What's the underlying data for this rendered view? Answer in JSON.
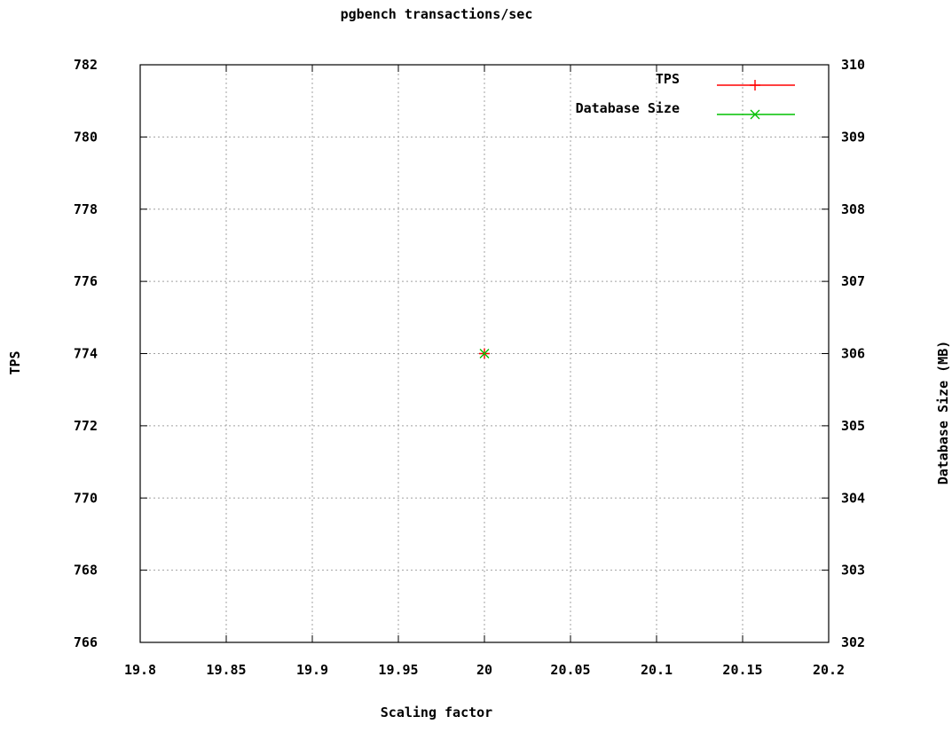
{
  "chart_data": {
    "type": "scatter",
    "title": "pgbench transactions/sec",
    "xlabel": "Scaling factor",
    "ylabel": "TPS",
    "y2label": "Database Size (MB)",
    "xlim": [
      19.8,
      20.2
    ],
    "ylim": [
      766,
      782
    ],
    "y2lim": [
      302,
      310
    ],
    "x_ticks": [
      "19.8",
      "19.85",
      "19.9",
      "19.95",
      "20",
      "20.05",
      "20.1",
      "20.15",
      "20.2"
    ],
    "y_ticks": [
      "766",
      "768",
      "770",
      "772",
      "774",
      "776",
      "778",
      "780",
      "782"
    ],
    "y2_ticks": [
      "302",
      "303",
      "304",
      "305",
      "306",
      "307",
      "308",
      "309",
      "310"
    ],
    "grid": true,
    "legend_position": "top-right",
    "series": [
      {
        "name": "TPS",
        "axis": "y",
        "color": "#ff0000",
        "marker": "plus",
        "x": [
          20
        ],
        "y": [
          774
        ]
      },
      {
        "name": "Database Size",
        "axis": "y2",
        "color": "#00c000",
        "marker": "cross",
        "x": [
          20
        ],
        "y": [
          306
        ]
      }
    ]
  }
}
